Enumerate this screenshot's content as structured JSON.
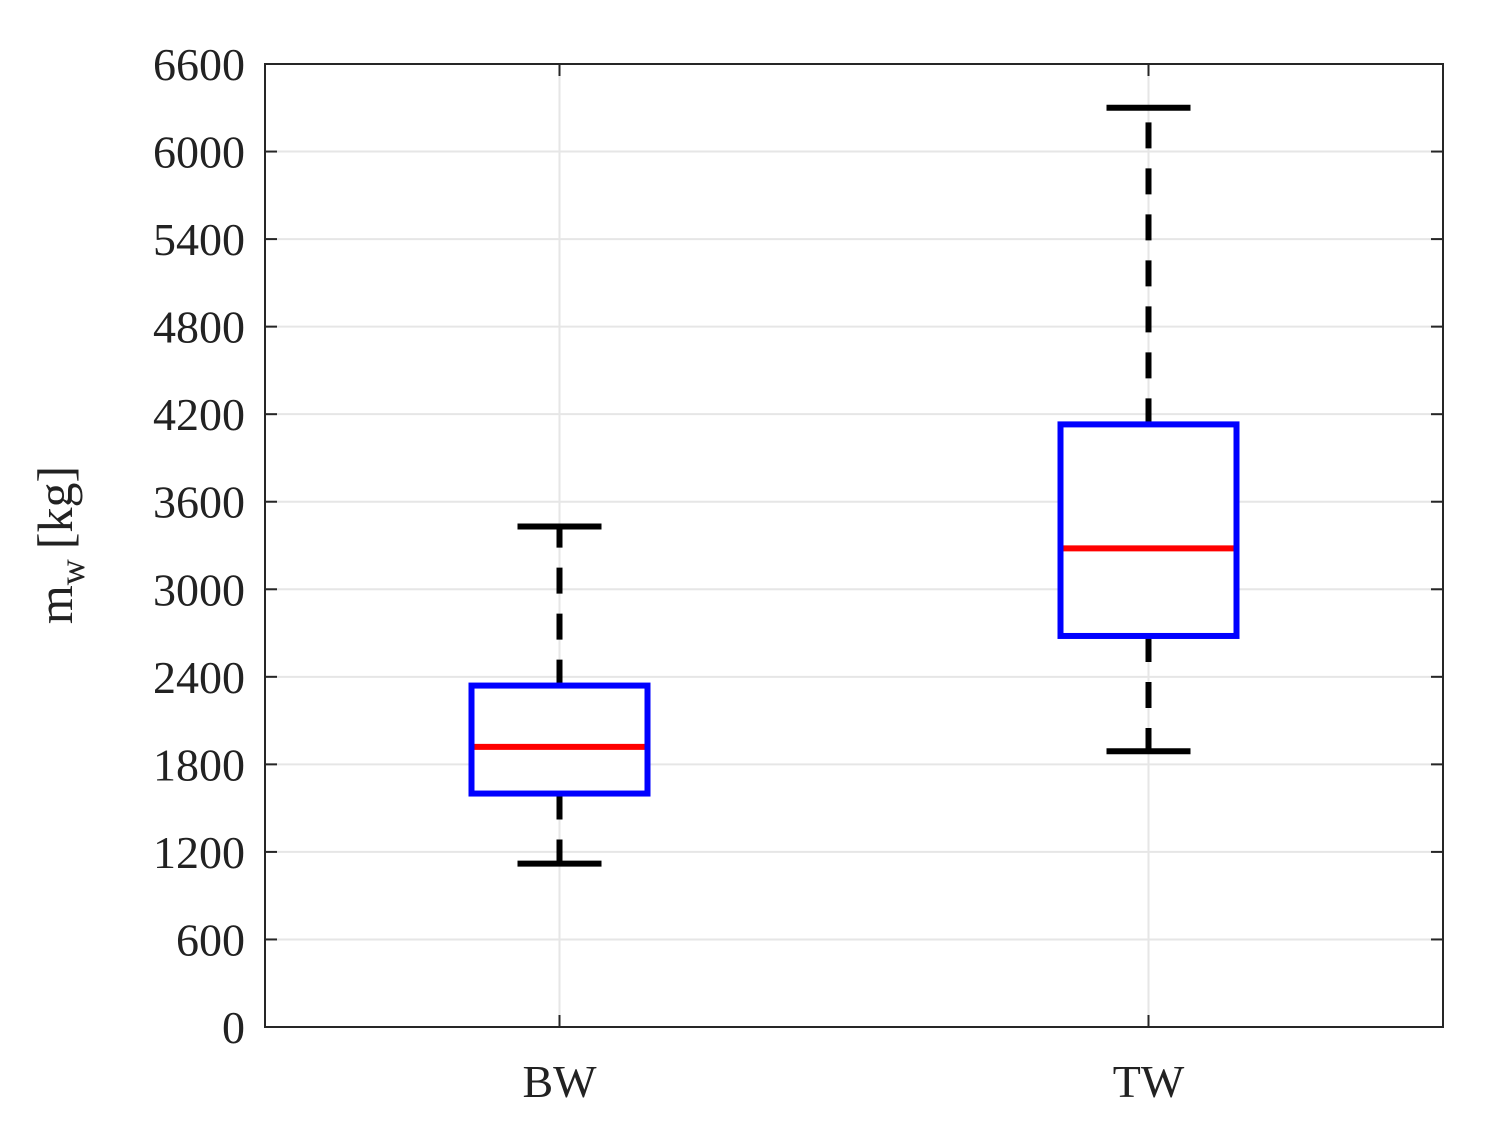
{
  "chart_data": {
    "type": "box",
    "ylabel": {
      "main": "m",
      "subscript": "w",
      "unit": "[kg]"
    },
    "xlabel": "",
    "ylim": [
      0,
      6600
    ],
    "yticks": [
      0,
      600,
      1200,
      1800,
      2400,
      3000,
      3600,
      4200,
      4800,
      5400,
      6000,
      6600
    ],
    "grid": true,
    "categories": [
      "BW",
      "TW"
    ],
    "boxes": [
      {
        "category": "BW",
        "whisker_low": 1120,
        "q1": 1600,
        "median": 1920,
        "q3": 2340,
        "whisker_high": 3430
      },
      {
        "category": "TW",
        "whisker_low": 1890,
        "q1": 2680,
        "median": 3280,
        "q3": 4130,
        "whisker_high": 6300
      }
    ],
    "colors": {
      "box": "#0000ff",
      "median": "#ff0000",
      "whisker": "#000000",
      "grid": "#e6e6e6",
      "axis": "#262626"
    }
  }
}
